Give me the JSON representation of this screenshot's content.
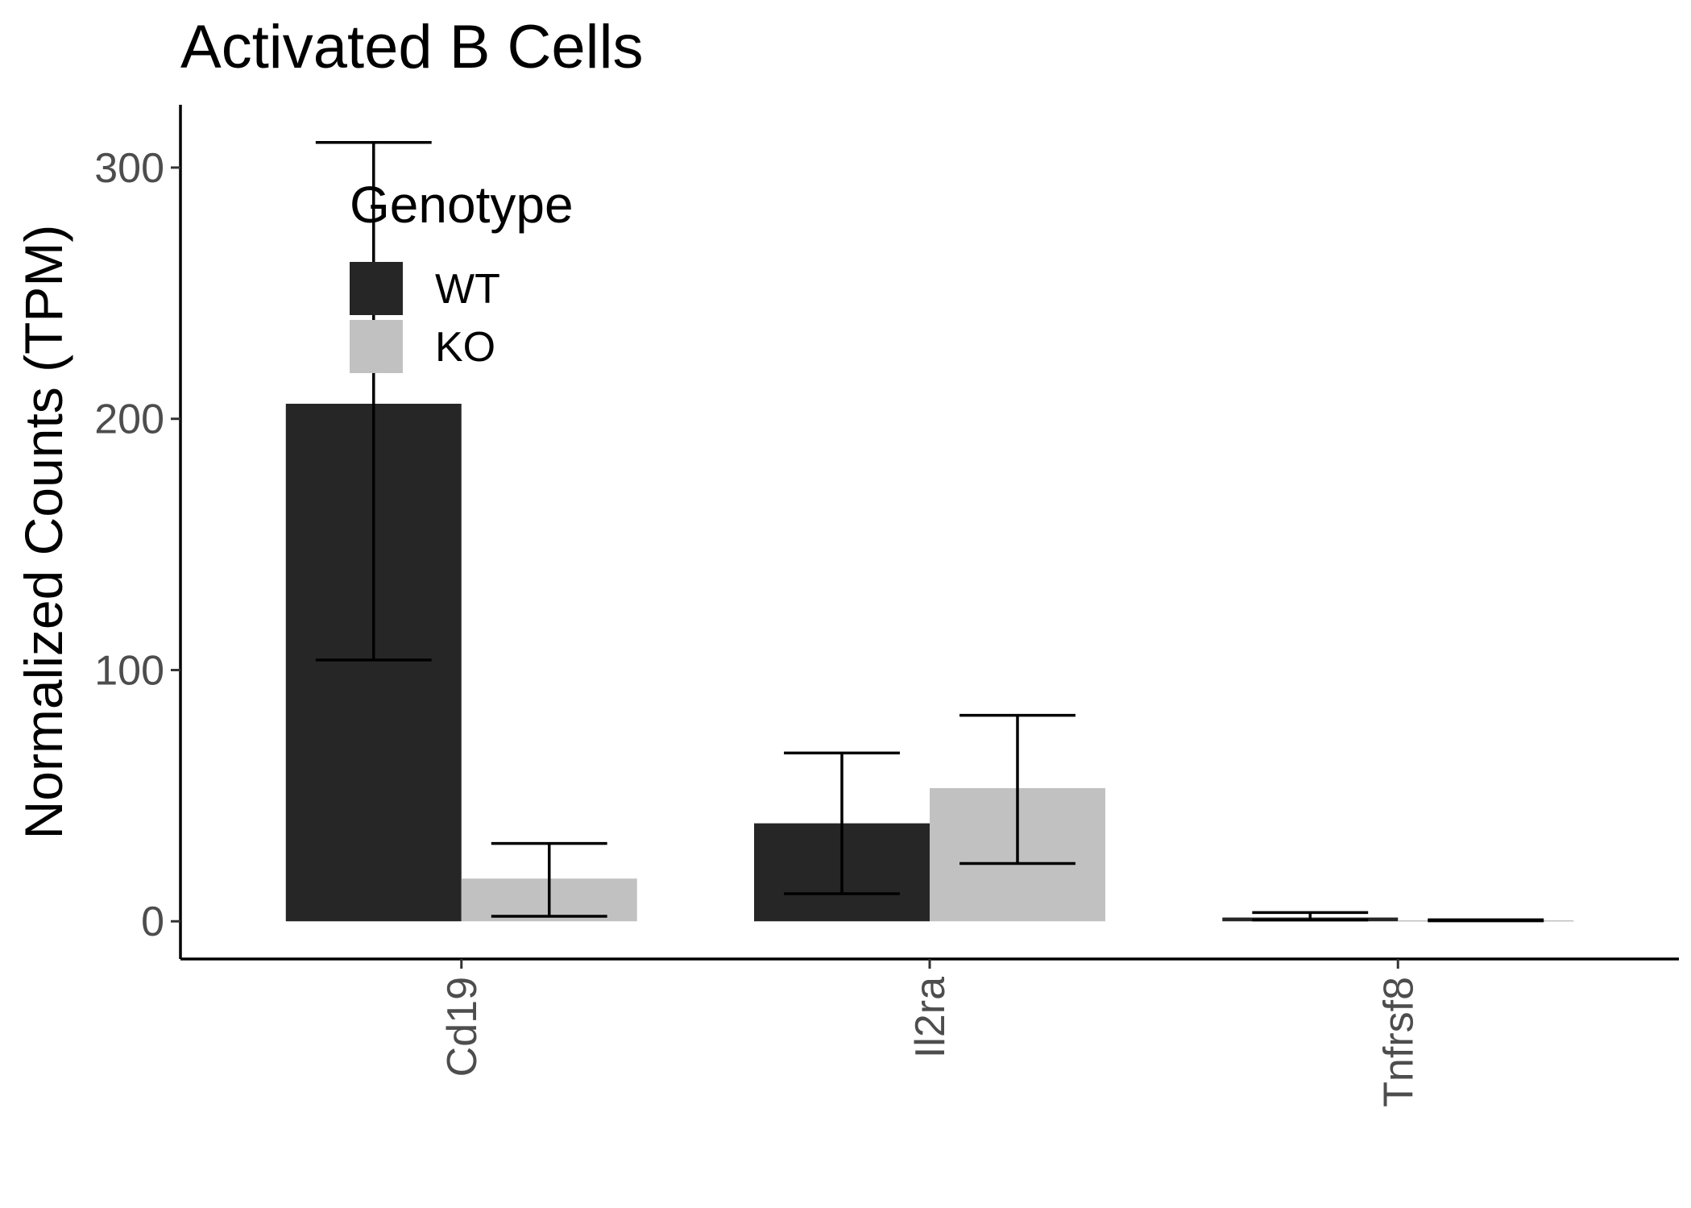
{
  "chart_data": {
    "type": "bar",
    "title": "Activated B Cells",
    "xlabel": "",
    "ylabel": "Normalized Counts (TPM)",
    "categories": [
      "Cd19",
      "Il2ra",
      "Tnfrsf8"
    ],
    "ylim": [
      -15,
      325
    ],
    "yticks": [
      0,
      100,
      200,
      300
    ],
    "grid": false,
    "legend": {
      "title": "Genotype",
      "placement": "top-left"
    },
    "series": [
      {
        "name": "WT",
        "color": "#262626",
        "values": [
          206,
          39,
          1.5
        ],
        "error_low": [
          104,
          11,
          0.5
        ],
        "error_high": [
          310,
          67,
          3.5
        ]
      },
      {
        "name": "KO",
        "color": "#c1c1c1",
        "values": [
          17,
          53,
          0.4
        ],
        "error_low": [
          2,
          23,
          0.2
        ],
        "error_high": [
          31,
          82,
          0.6
        ]
      }
    ]
  }
}
